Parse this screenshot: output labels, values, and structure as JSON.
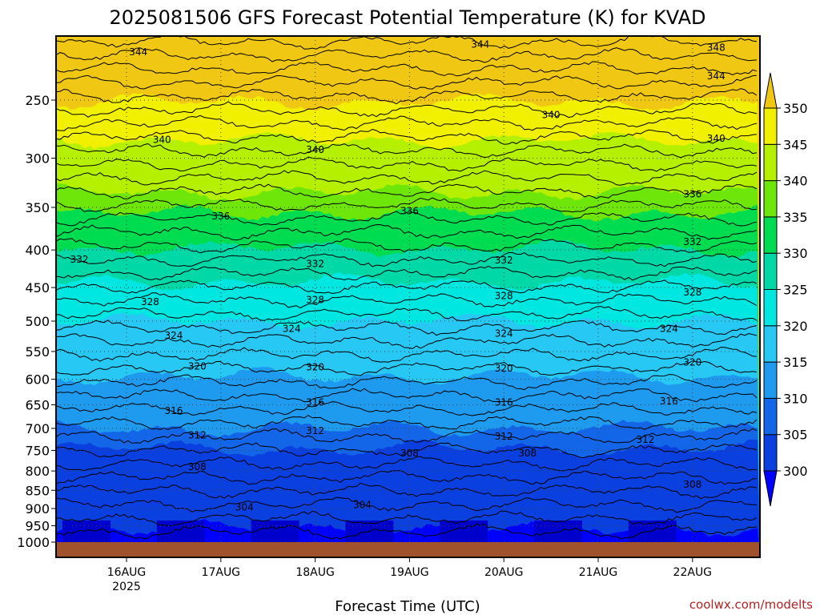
{
  "chart_data": {
    "type": "heatmap",
    "title": "2025081506 GFS Forecast Potential Temperature (K) for KVAD",
    "xlabel": "Forecast Time (UTC)",
    "ylabel": "",
    "credit": "coolwx.com/modelts",
    "y_ticks": [
      250,
      300,
      350,
      400,
      450,
      500,
      550,
      600,
      650,
      700,
      750,
      800,
      850,
      900,
      950,
      1000
    ],
    "x_ticks": [
      {
        "label": "16AUG",
        "sub": "2025"
      },
      {
        "label": "17AUG",
        "sub": ""
      },
      {
        "label": "18AUG",
        "sub": ""
      },
      {
        "label": "19AUG",
        "sub": ""
      },
      {
        "label": "20AUG",
        "sub": ""
      },
      {
        "label": "21AUG",
        "sub": ""
      },
      {
        "label": "22AUG",
        "sub": ""
      }
    ],
    "colorbar": {
      "levels": [
        300,
        305,
        310,
        315,
        320,
        325,
        330,
        335,
        340,
        345,
        350
      ],
      "colors": [
        "#0000ff",
        "#0a3fe0",
        "#1466e8",
        "#1e9aee",
        "#28c8f5",
        "#00e6e0",
        "#00d8a8",
        "#00dc50",
        "#6ee60a",
        "#b4f000",
        "#f0f000",
        "#f0c814"
      ]
    },
    "contour_labels": [
      {
        "value": "348",
        "x": "2025-08-22T06",
        "p": 212
      },
      {
        "value": "344",
        "x": "2025-08-16T03",
        "p": 215
      },
      {
        "value": "344",
        "x": "2025-08-19T18",
        "p": 210
      },
      {
        "value": "344",
        "x": "2025-08-22T06",
        "p": 232
      },
      {
        "value": "340",
        "x": "2025-08-16T09",
        "p": 283
      },
      {
        "value": "340",
        "x": "2025-08-18T00",
        "p": 292
      },
      {
        "value": "340",
        "x": "2025-08-20T12",
        "p": 262
      },
      {
        "value": "340",
        "x": "2025-08-22T06",
        "p": 282
      },
      {
        "value": "336",
        "x": "2025-08-17T00",
        "p": 360
      },
      {
        "value": "336",
        "x": "2025-08-19T00",
        "p": 354
      },
      {
        "value": "336",
        "x": "2025-08-22T00",
        "p": 336
      },
      {
        "value": "332",
        "x": "2025-08-15T12",
        "p": 412
      },
      {
        "value": "332",
        "x": "2025-08-18T00",
        "p": 418
      },
      {
        "value": "332",
        "x": "2025-08-20T00",
        "p": 413
      },
      {
        "value": "332",
        "x": "2025-08-22T00",
        "p": 390
      },
      {
        "value": "328",
        "x": "2025-08-16T06",
        "p": 471
      },
      {
        "value": "328",
        "x": "2025-08-18T00",
        "p": 468
      },
      {
        "value": "328",
        "x": "2025-08-20T00",
        "p": 462
      },
      {
        "value": "328",
        "x": "2025-08-22T00",
        "p": 457
      },
      {
        "value": "324",
        "x": "2025-08-16T12",
        "p": 523
      },
      {
        "value": "324",
        "x": "2025-08-17T18",
        "p": 512
      },
      {
        "value": "324",
        "x": "2025-08-20T00",
        "p": 520
      },
      {
        "value": "324",
        "x": "2025-08-21T18",
        "p": 512
      },
      {
        "value": "320",
        "x": "2025-08-16T18",
        "p": 576
      },
      {
        "value": "320",
        "x": "2025-08-18T00",
        "p": 578
      },
      {
        "value": "320",
        "x": "2025-08-20T00",
        "p": 580
      },
      {
        "value": "320",
        "x": "2025-08-22T00",
        "p": 569
      },
      {
        "value": "316",
        "x": "2025-08-16T12",
        "p": 662
      },
      {
        "value": "316",
        "x": "2025-08-18T00",
        "p": 645
      },
      {
        "value": "316",
        "x": "2025-08-20T00",
        "p": 645
      },
      {
        "value": "316",
        "x": "2025-08-21T18",
        "p": 643
      },
      {
        "value": "312",
        "x": "2025-08-16T18",
        "p": 715
      },
      {
        "value": "312",
        "x": "2025-08-18T00",
        "p": 705
      },
      {
        "value": "312",
        "x": "2025-08-20T00",
        "p": 718
      },
      {
        "value": "312",
        "x": "2025-08-21T12",
        "p": 725
      },
      {
        "value": "308",
        "x": "2025-08-16T18",
        "p": 790
      },
      {
        "value": "308",
        "x": "2025-08-19T00",
        "p": 757
      },
      {
        "value": "308",
        "x": "2025-08-20T06",
        "p": 757
      },
      {
        "value": "308",
        "x": "2025-08-22T00",
        "p": 835
      },
      {
        "value": "304",
        "x": "2025-08-17T06",
        "p": 896
      },
      {
        "value": "304",
        "x": "2025-08-18T12",
        "p": 890
      }
    ]
  }
}
